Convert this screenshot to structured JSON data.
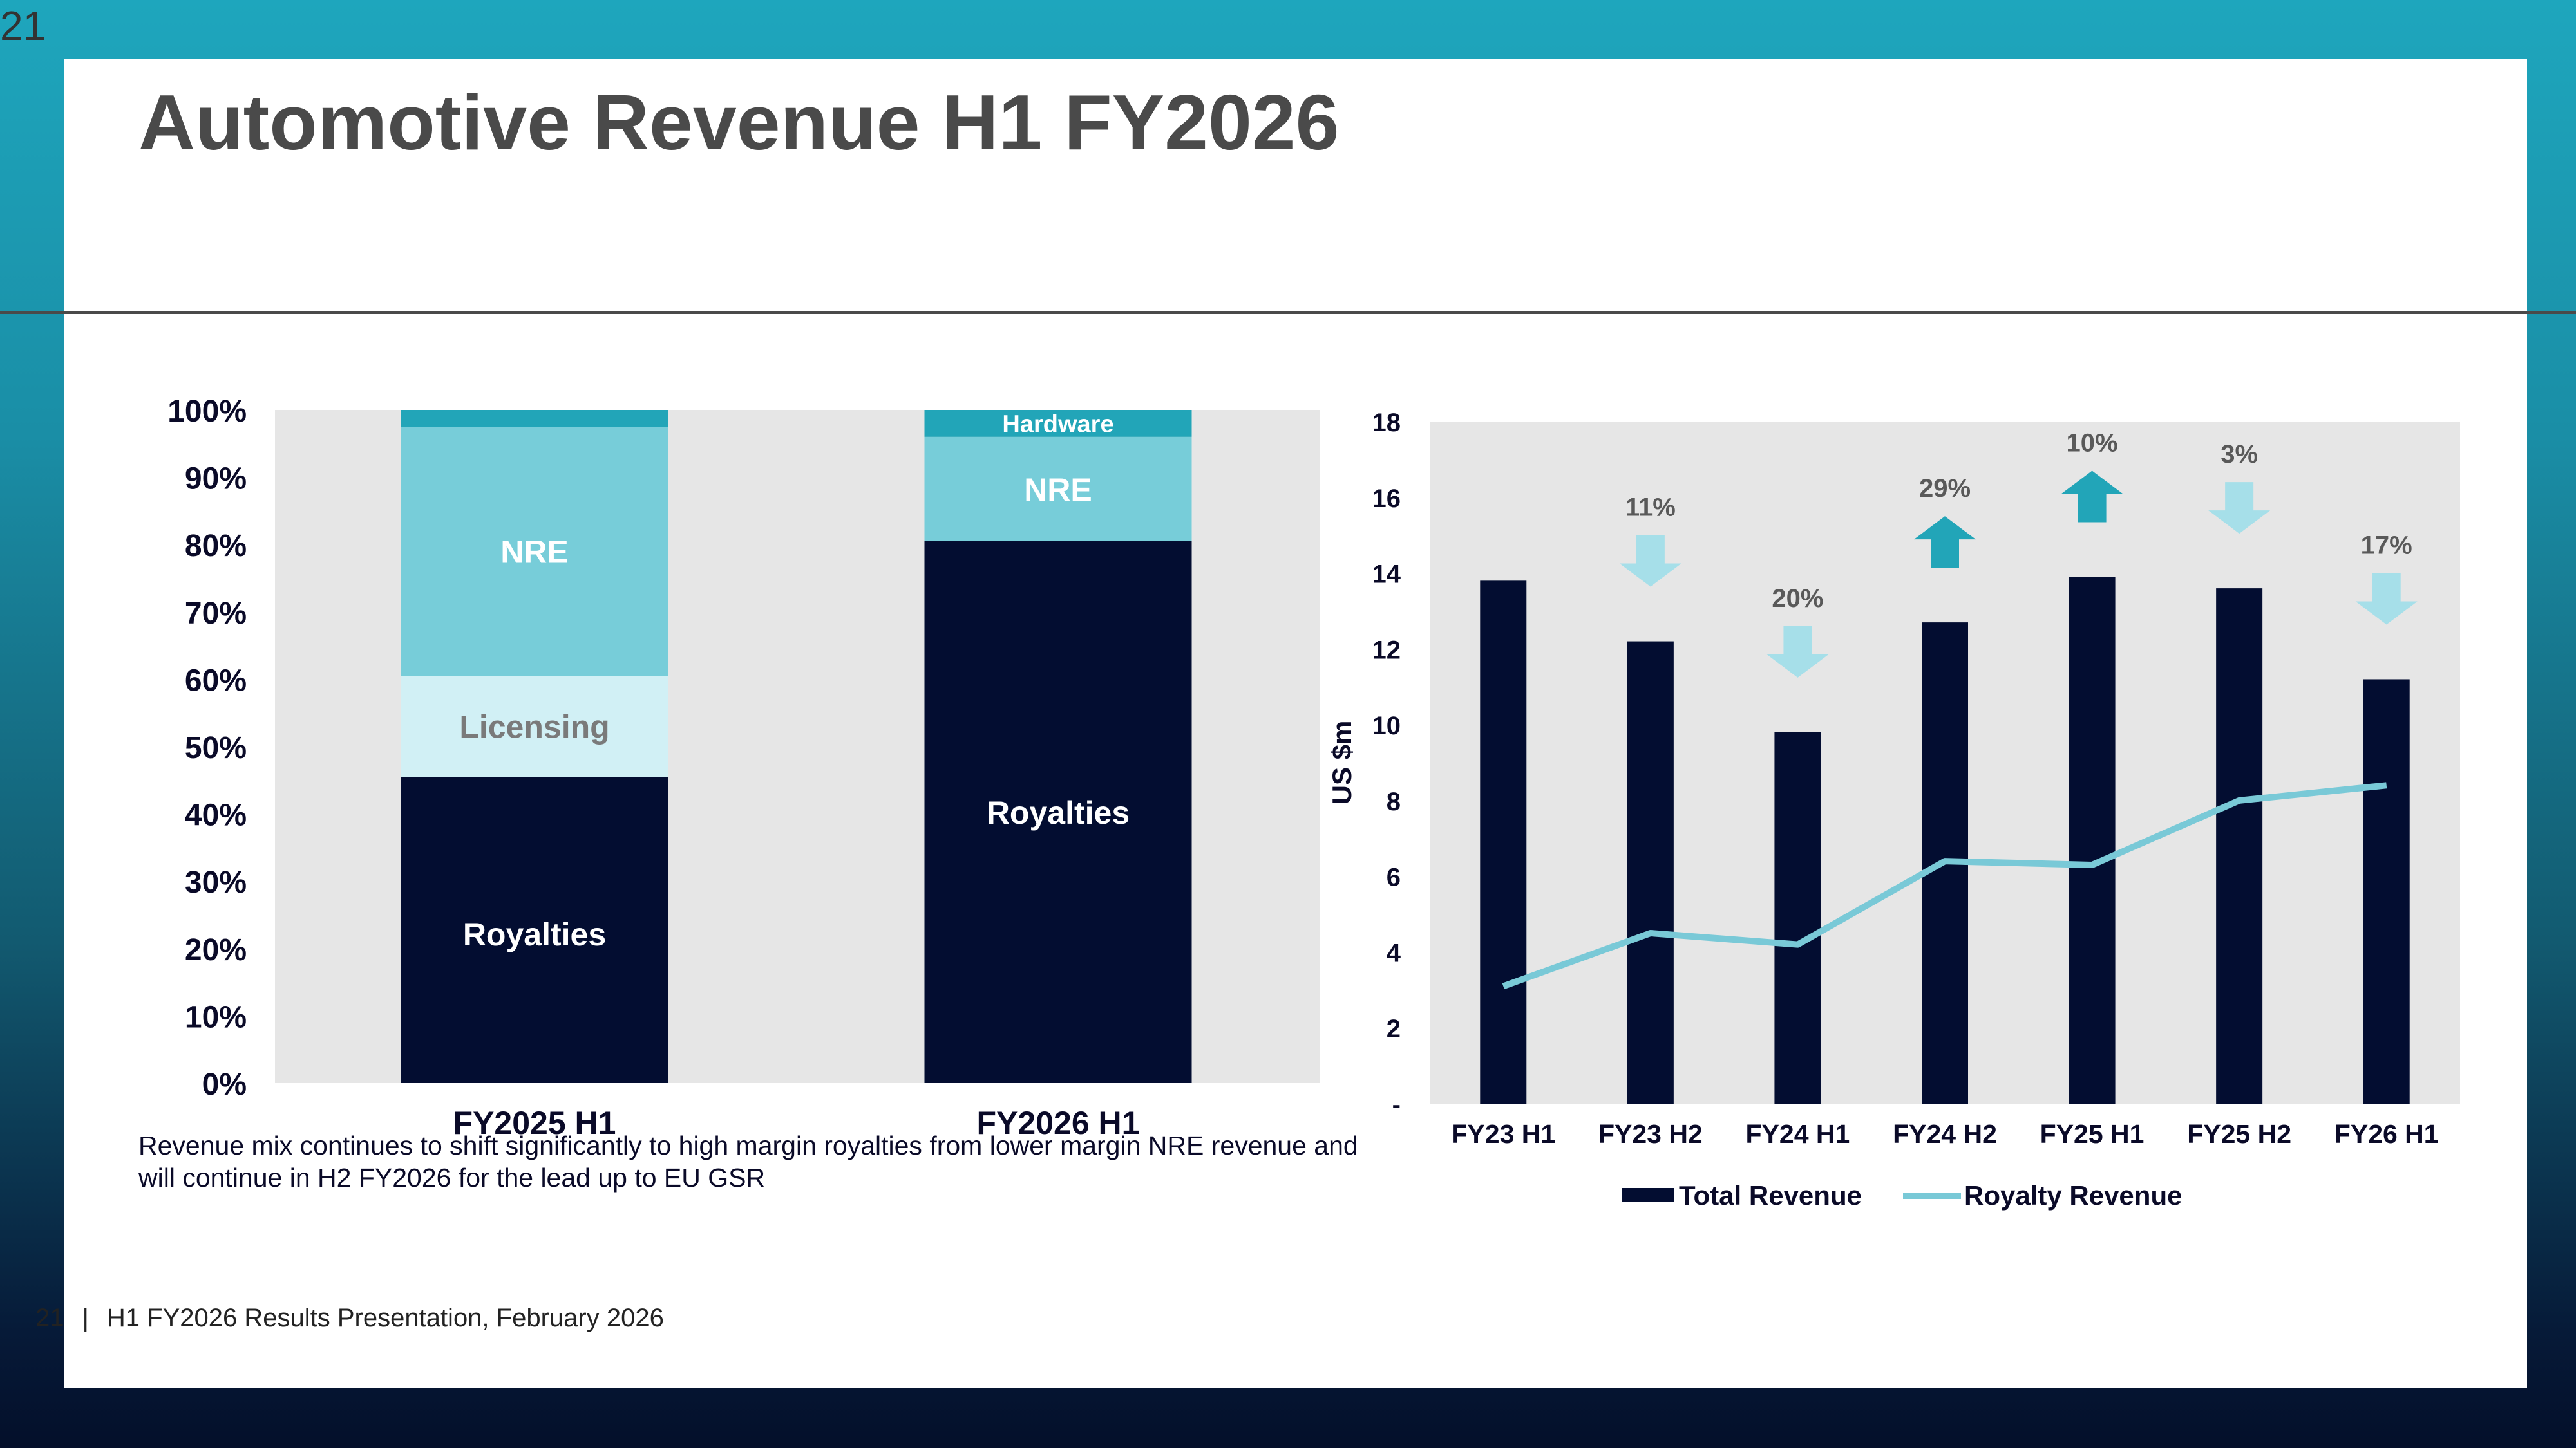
{
  "corner_number": "21",
  "title": "Automotive Revenue H1 FY2026",
  "body_text": "Revenue mix continues to shift significantly to high margin royalties from lower margin NRE revenue and will continue in H2 FY2026 for the lead up to EU GSR",
  "footer": {
    "page": "21",
    "separator": "|",
    "text": "H1 FY2026 Results Presentation, February 2026"
  },
  "colors": {
    "navy": "#030d31",
    "teal": "#22a5b8",
    "light_blue": "#77cdd9",
    "pale_blue": "#d1f0f5",
    "arrow_down": "#a6dfe9",
    "plot_bg": "#e6e6e6",
    "line": "#79c9d7"
  },
  "chart_data": [
    {
      "type": "bar",
      "stacked": true,
      "categories": [
        "FY2025 H1",
        "FY2026 H1"
      ],
      "series": [
        {
          "name": "Royalties",
          "values": [
            45.5,
            80.5
          ],
          "color": "#030d31"
        },
        {
          "name": "Licensing",
          "values": [
            15,
            0
          ],
          "color": "#d1f0f5"
        },
        {
          "name": "NRE",
          "values": [
            37,
            15.5
          ],
          "color": "#77cdd9"
        },
        {
          "name": "Hardware",
          "values": [
            2.5,
            4
          ],
          "color": "#22a5b8"
        }
      ],
      "segment_labels": [
        [
          "Royalties",
          "Licensing",
          "NRE",
          ""
        ],
        [
          "Royalties",
          "",
          "NRE",
          "Hardware"
        ]
      ],
      "yticks": [
        "0%",
        "10%",
        "20%",
        "30%",
        "40%",
        "50%",
        "60%",
        "70%",
        "80%",
        "90%",
        "100%"
      ],
      "ylim": [
        0,
        100
      ],
      "legend": "none"
    },
    {
      "type": "bar",
      "categories": [
        "FY23 H1",
        "FY23 H2",
        "FY24 H1",
        "FY24 H2",
        "FY25 H1",
        "FY25 H2",
        "FY26 H1"
      ],
      "series": [
        {
          "name": "Total Revenue",
          "type": "bar",
          "values": [
            13.8,
            12.2,
            9.8,
            12.7,
            13.9,
            13.6,
            11.2
          ]
        },
        {
          "name": "Royalty Revenue",
          "type": "line",
          "values": [
            3.1,
            4.5,
            4.2,
            6.4,
            6.3,
            8.0,
            8.4
          ]
        }
      ],
      "change_annotations": [
        {
          "category": "FY23 H2",
          "label": "11%",
          "direction": "down"
        },
        {
          "category": "FY24 H1",
          "label": "20%",
          "direction": "down"
        },
        {
          "category": "FY24 H2",
          "label": "29%",
          "direction": "up"
        },
        {
          "category": "FY25 H1",
          "label": "10%",
          "direction": "up"
        },
        {
          "category": "FY25 H2",
          "label": "3%",
          "direction": "down"
        },
        {
          "category": "FY26 H1",
          "label": "17%",
          "direction": "down"
        }
      ],
      "ylabel": "US $m",
      "yticks": [
        "-",
        "2",
        "4",
        "6",
        "8",
        "10",
        "12",
        "14",
        "16",
        "18"
      ],
      "ylim": [
        0,
        18
      ],
      "legend": "bottom"
    }
  ]
}
